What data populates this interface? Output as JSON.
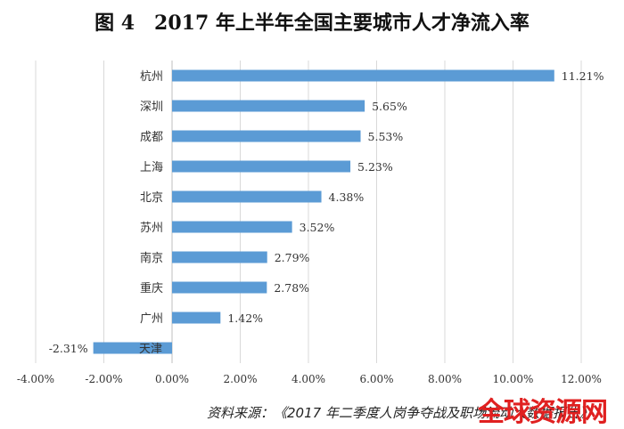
{
  "title": "图 4　2017 年上半年全国主要城市人才净流入率",
  "source_note": "资料来源：《2017 年二季度人岗争夺战及职场流动大数据报告》",
  "watermark": "全球资源网",
  "colors": {
    "bar": "#5b9bd5",
    "grid": "#d9d9d9",
    "axis": "#bfbfbf",
    "text": "#333333"
  },
  "chart_data": {
    "type": "bar",
    "orientation": "horizontal",
    "categories": [
      "杭州",
      "深圳",
      "成都",
      "上海",
      "北京",
      "苏州",
      "南京",
      "重庆",
      "广州",
      "天津"
    ],
    "values": [
      11.21,
      5.65,
      5.53,
      5.23,
      4.38,
      3.52,
      2.79,
      2.78,
      1.42,
      -2.31
    ],
    "data_labels": [
      "11.21%",
      "5.65%",
      "5.53%",
      "5.23%",
      "4.38%",
      "3.52%",
      "2.79%",
      "2.78%",
      "1.42%",
      "-2.31%"
    ],
    "xlim": [
      -4,
      12
    ],
    "xticks": [
      -4,
      -2,
      0,
      2,
      4,
      6,
      8,
      10,
      12
    ],
    "xtick_labels": [
      "-4.00%",
      "-2.00%",
      "0.00%",
      "2.00%",
      "4.00%",
      "6.00%",
      "8.00%",
      "10.00%",
      "12.00%"
    ],
    "grid": true,
    "legend": false
  }
}
